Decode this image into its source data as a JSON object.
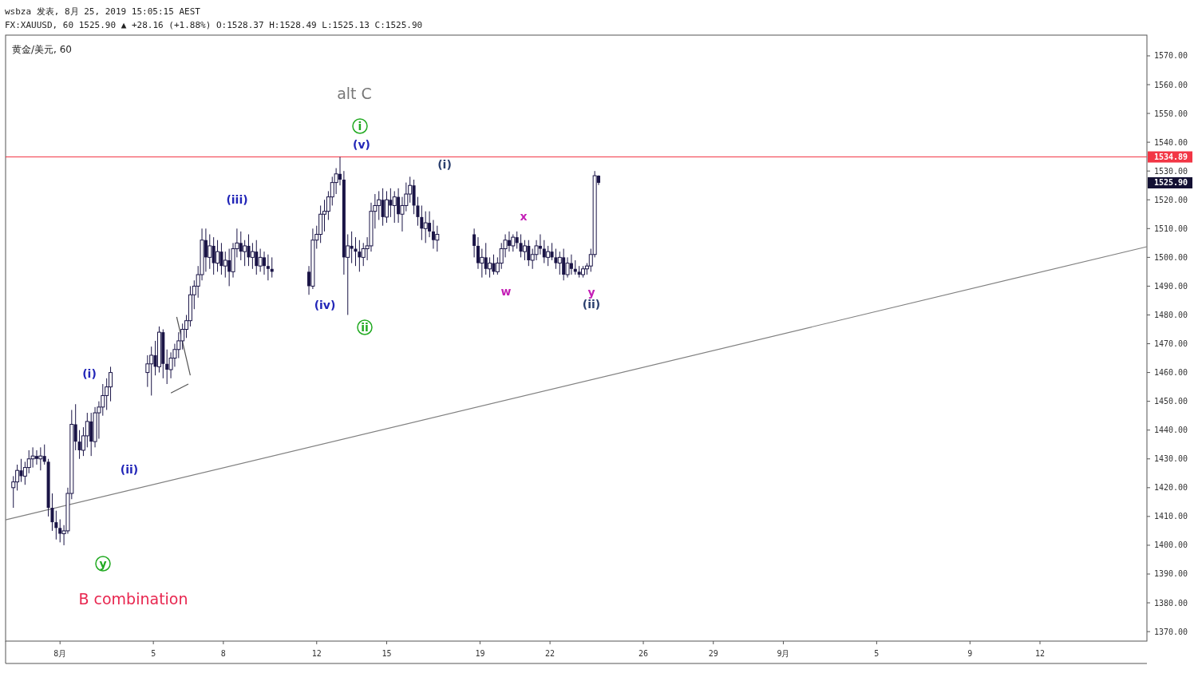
{
  "chart_data": {
    "type": "candlestick",
    "title": "黄金/美元, 60",
    "subtitle": "FX:XAUUSD, 60 1525.90 ▲ +28.16 (+1.88%) O:1528.37 H:1528.49 L:1525.13 C:1525.90",
    "color": "#1a1446",
    "x": [
      "2019-07-30T00:00",
      "2019-07-30T04:00",
      "2019-07-30T08:00",
      "2019-07-30T12:00",
      "2019-07-30T16:00",
      "2019-07-30T20:00",
      "2019-07-31T00:00",
      "2019-07-31T04:00",
      "2019-07-31T08:00",
      "2019-07-31T12:00",
      "2019-07-31T16:00",
      "2019-07-31T20:00",
      "2019-08-01T00:00",
      "2019-08-01T04:00",
      "2019-08-01T08:00",
      "2019-08-01T12:00",
      "2019-08-01T16:00",
      "2019-08-01T20:00",
      "2019-08-02T00:00",
      "2019-08-02T04:00",
      "2019-08-02T08:00",
      "2019-08-02T12:00",
      "2019-08-02T16:00",
      "2019-08-02T20:00",
      "2019-08-03T00:00",
      "2019-08-03T04:00",
      "2019-08-04T18:00",
      "2019-08-04T22:00",
      "2019-08-05T02:00",
      "2019-08-05T06:00",
      "2019-08-05T10:00",
      "2019-08-05T14:00",
      "2019-08-05T18:00",
      "2019-08-05T22:00",
      "2019-08-06T02:00",
      "2019-08-06T06:00",
      "2019-08-06T10:00",
      "2019-08-06T14:00",
      "2019-08-06T18:00",
      "2019-08-06T22:00",
      "2019-08-07T02:00",
      "2019-08-07T06:00",
      "2019-08-07T10:00",
      "2019-08-07T14:00",
      "2019-08-07T18:00",
      "2019-08-07T22:00",
      "2019-08-08T02:00",
      "2019-08-08T06:00",
      "2019-08-08T10:00",
      "2019-08-08T14:00",
      "2019-08-08T18:00",
      "2019-08-08T22:00",
      "2019-08-09T02:00",
      "2019-08-09T06:00",
      "2019-08-09T10:00",
      "2019-08-09T14:00",
      "2019-08-09T18:00",
      "2019-08-09T22:00",
      "2019-08-10T02:00",
      "2019-08-11T16:00",
      "2019-08-11T20:00",
      "2019-08-12T00:00",
      "2019-08-12T04:00",
      "2019-08-12T08:00",
      "2019-08-12T12:00",
      "2019-08-12T16:00",
      "2019-08-12T20:00",
      "2019-08-13T00:00",
      "2019-08-13T04:00",
      "2019-08-13T08:00",
      "2019-08-13T12:00",
      "2019-08-13T16:00",
      "2019-08-13T20:00",
      "2019-08-14T00:00",
      "2019-08-14T04:00",
      "2019-08-14T08:00",
      "2019-08-14T12:00",
      "2019-08-14T16:00",
      "2019-08-14T20:00",
      "2019-08-15T00:00",
      "2019-08-15T04:00",
      "2019-08-15T08:00",
      "2019-08-15T12:00",
      "2019-08-15T16:00",
      "2019-08-15T20:00",
      "2019-08-16T00:00",
      "2019-08-16T04:00",
      "2019-08-16T08:00",
      "2019-08-16T12:00",
      "2019-08-16T16:00",
      "2019-08-16T20:00",
      "2019-08-17T00:00",
      "2019-08-17T04:00",
      "2019-08-18T18:00",
      "2019-08-18T22:00",
      "2019-08-19T02:00",
      "2019-08-19T06:00",
      "2019-08-19T10:00",
      "2019-08-19T14:00",
      "2019-08-19T18:00",
      "2019-08-19T22:00",
      "2019-08-20T02:00",
      "2019-08-20T06:00",
      "2019-08-20T10:00",
      "2019-08-20T14:00",
      "2019-08-20T18:00",
      "2019-08-20T22:00",
      "2019-08-21T02:00",
      "2019-08-21T06:00",
      "2019-08-21T10:00",
      "2019-08-21T14:00",
      "2019-08-21T18:00",
      "2019-08-21T22:00",
      "2019-08-22T02:00",
      "2019-08-22T06:00",
      "2019-08-22T10:00",
      "2019-08-22T14:00",
      "2019-08-22T18:00",
      "2019-08-22T22:00",
      "2019-08-23T02:00",
      "2019-08-23T06:00",
      "2019-08-23T10:00",
      "2019-08-23T14:00",
      "2019-08-23T18:00",
      "2019-08-23T22:00",
      "2019-08-24T02:00"
    ],
    "ohlc": [
      [
        1420,
        1424,
        1413,
        1422
      ],
      [
        1422,
        1428,
        1419,
        1426
      ],
      [
        1426,
        1430,
        1422,
        1424
      ],
      [
        1424,
        1429,
        1421,
        1427
      ],
      [
        1427,
        1433,
        1425,
        1430
      ],
      [
        1430,
        1434,
        1427,
        1431
      ],
      [
        1431,
        1433,
        1428,
        1430
      ],
      [
        1430,
        1434,
        1426,
        1431
      ],
      [
        1431,
        1435,
        1428,
        1429
      ],
      [
        1429,
        1430,
        1410,
        1413
      ],
      [
        1413,
        1418,
        1405,
        1408
      ],
      [
        1408,
        1412,
        1402,
        1406
      ],
      [
        1406,
        1409,
        1401,
        1404
      ],
      [
        1404,
        1407,
        1400,
        1405
      ],
      [
        1405,
        1420,
        1404,
        1418
      ],
      [
        1418,
        1447,
        1416,
        1442
      ],
      [
        1442,
        1449,
        1433,
        1436
      ],
      [
        1436,
        1440,
        1430,
        1433
      ],
      [
        1433,
        1441,
        1431,
        1438
      ],
      [
        1438,
        1446,
        1434,
        1443
      ],
      [
        1443,
        1446,
        1431,
        1436
      ],
      [
        1436,
        1448,
        1434,
        1446
      ],
      [
        1446,
        1450,
        1437,
        1448
      ],
      [
        1448,
        1456,
        1445,
        1452
      ],
      [
        1452,
        1458,
        1447,
        1455
      ],
      [
        1455,
        1462,
        1450,
        1460
      ],
      [
        1460,
        1466,
        1455,
        1463
      ],
      [
        1463,
        1469,
        1452,
        1466
      ],
      [
        1466,
        1471,
        1459,
        1462
      ],
      [
        1462,
        1476,
        1460,
        1474
      ],
      [
        1474,
        1475,
        1458,
        1463
      ],
      [
        1463,
        1468,
        1456,
        1461
      ],
      [
        1461,
        1467,
        1458,
        1465
      ],
      [
        1465,
        1470,
        1462,
        1468
      ],
      [
        1468,
        1474,
        1465,
        1471
      ],
      [
        1471,
        1477,
        1468,
        1475
      ],
      [
        1475,
        1480,
        1472,
        1478
      ],
      [
        1478,
        1490,
        1476,
        1487
      ],
      [
        1487,
        1492,
        1482,
        1490
      ],
      [
        1490,
        1497,
        1486,
        1494
      ],
      [
        1494,
        1510,
        1492,
        1506
      ],
      [
        1506,
        1510,
        1495,
        1500
      ],
      [
        1500,
        1508,
        1496,
        1504
      ],
      [
        1504,
        1507,
        1494,
        1498
      ],
      [
        1498,
        1506,
        1495,
        1502
      ],
      [
        1502,
        1505,
        1494,
        1497
      ],
      [
        1497,
        1502,
        1493,
        1499
      ],
      [
        1499,
        1503,
        1490,
        1495
      ],
      [
        1495,
        1505,
        1493,
        1503
      ],
      [
        1503,
        1510,
        1500,
        1505
      ],
      [
        1505,
        1509,
        1499,
        1502
      ],
      [
        1502,
        1506,
        1497,
        1504
      ],
      [
        1504,
        1508,
        1497,
        1500
      ],
      [
        1500,
        1505,
        1496,
        1502
      ],
      [
        1502,
        1506,
        1494,
        1497
      ],
      [
        1497,
        1503,
        1495,
        1500
      ],
      [
        1500,
        1502,
        1494,
        1497
      ],
      [
        1497,
        1501,
        1492,
        1496
      ],
      [
        1496,
        1500,
        1493,
        1495
      ],
      [
        1495,
        1497,
        1487,
        1490
      ],
      [
        1490,
        1510,
        1489,
        1506
      ],
      [
        1506,
        1511,
        1503,
        1508
      ],
      [
        1508,
        1518,
        1505,
        1515
      ],
      [
        1515,
        1520,
        1509,
        1516
      ],
      [
        1516,
        1523,
        1513,
        1521
      ],
      [
        1521,
        1528,
        1518,
        1526
      ],
      [
        1526,
        1531,
        1522,
        1529
      ],
      [
        1529,
        1534.89,
        1525,
        1527
      ],
      [
        1527,
        1530,
        1494,
        1500
      ],
      [
        1500,
        1508,
        1480,
        1504
      ],
      [
        1504,
        1509,
        1498,
        1503
      ],
      [
        1503,
        1507,
        1497,
        1502
      ],
      [
        1502,
        1506,
        1495,
        1500
      ],
      [
        1500,
        1505,
        1497,
        1503
      ],
      [
        1503,
        1507,
        1499,
        1504
      ],
      [
        1504,
        1519,
        1502,
        1516
      ],
      [
        1516,
        1522,
        1510,
        1518
      ],
      [
        1518,
        1523,
        1513,
        1520
      ],
      [
        1520,
        1524,
        1511,
        1514
      ],
      [
        1514,
        1523,
        1512,
        1520
      ],
      [
        1520,
        1524,
        1514,
        1518
      ],
      [
        1518,
        1523,
        1512,
        1521
      ],
      [
        1521,
        1524,
        1512,
        1515
      ],
      [
        1515,
        1521,
        1509,
        1518
      ],
      [
        1518,
        1526,
        1516,
        1522
      ],
      [
        1522,
        1528,
        1519,
        1525
      ],
      [
        1525,
        1527,
        1515,
        1518
      ],
      [
        1518,
        1521,
        1511,
        1514
      ],
      [
        1514,
        1518,
        1506,
        1510
      ],
      [
        1510,
        1516,
        1505,
        1512
      ],
      [
        1512,
        1516,
        1507,
        1509
      ],
      [
        1509,
        1513,
        1503,
        1506
      ],
      [
        1506,
        1511,
        1502,
        1508
      ],
      [
        1508,
        1510,
        1500,
        1504
      ],
      [
        1504,
        1507,
        1496,
        1498
      ],
      [
        1498,
        1503,
        1493,
        1500
      ],
      [
        1500,
        1505,
        1494,
        1496
      ],
      [
        1496,
        1500,
        1493,
        1498
      ],
      [
        1498,
        1501,
        1494,
        1495
      ],
      [
        1495,
        1500,
        1494,
        1498
      ],
      [
        1498,
        1505,
        1496,
        1503
      ],
      [
        1503,
        1508,
        1500,
        1506
      ],
      [
        1506,
        1509,
        1502,
        1504
      ],
      [
        1504,
        1508,
        1502,
        1507
      ],
      [
        1507,
        1509,
        1503,
        1505
      ],
      [
        1505,
        1508,
        1500,
        1502
      ],
      [
        1502,
        1506,
        1499,
        1504
      ],
      [
        1504,
        1506,
        1497,
        1499
      ],
      [
        1499,
        1503,
        1496,
        1501
      ],
      [
        1501,
        1506,
        1499,
        1504
      ],
      [
        1504,
        1508,
        1501,
        1503
      ],
      [
        1503,
        1506,
        1498,
        1500
      ],
      [
        1500,
        1504,
        1497,
        1502
      ],
      [
        1502,
        1505,
        1499,
        1500
      ],
      [
        1500,
        1503,
        1496,
        1498
      ],
      [
        1498,
        1502,
        1494,
        1500
      ],
      [
        1500,
        1503,
        1492,
        1494
      ],
      [
        1494,
        1500,
        1493,
        1498
      ],
      [
        1498,
        1501,
        1494,
        1496
      ],
      [
        1496,
        1499,
        1494,
        1495
      ],
      [
        1495,
        1497,
        1493,
        1494
      ],
      [
        1494,
        1497,
        1493,
        1496
      ],
      [
        1496,
        1498,
        1494,
        1497
      ],
      [
        1497,
        1503,
        1495,
        1501
      ],
      [
        1501,
        1530,
        1500,
        1528.37
      ],
      [
        1528.37,
        1528.49,
        1525.13,
        1525.9
      ]
    ],
    "series": [
      {
        "type": "line",
        "color": "#808080",
        "x": [
          "2019-07-29T16:00",
          "2019-09-16T14:00"
        ],
        "values": [
          1408.8,
          1503.7
        ]
      },
      {
        "type": "line",
        "color": "#555555",
        "x": [
          "2019-08-06T00:00",
          "2019-08-06T14:00",
          null,
          "2019-08-05T18:00",
          "2019-08-06T12:00"
        ],
        "values": [
          1479.3,
          1459.0,
          null,
          1452.9,
          1456.0
        ]
      }
    ],
    "xlim": [
      "2019-07-29T16:00",
      "2019-09-16T14:00"
    ],
    "xticks": [
      {
        "value": "2019-08-01",
        "label": "8月"
      },
      {
        "value": "2019-08-05",
        "label": "5"
      },
      {
        "value": "2019-08-08",
        "label": "8"
      },
      {
        "value": "2019-08-12",
        "label": "12"
      },
      {
        "value": "2019-08-15",
        "label": "15"
      },
      {
        "value": "2019-08-19",
        "label": "19"
      },
      {
        "value": "2019-08-22",
        "label": "22"
      },
      {
        "value": "2019-08-26",
        "label": "26"
      },
      {
        "value": "2019-08-29",
        "label": "29"
      },
      {
        "value": "2019-09-01",
        "label": "9月"
      },
      {
        "value": "2019-09-05",
        "label": "5"
      },
      {
        "value": "2019-09-09",
        "label": "9"
      },
      {
        "value": "2019-09-12",
        "label": "12"
      }
    ],
    "ylim": [
      1366.7,
      1577.2
    ],
    "yticks": [
      {
        "value": 1370,
        "label": "1370.00"
      },
      {
        "value": 1380,
        "label": "1380.00"
      },
      {
        "value": 1390,
        "label": "1390.00"
      },
      {
        "value": 1400,
        "label": "1400.00"
      },
      {
        "value": 1410,
        "label": "1410.00"
      },
      {
        "value": 1420,
        "label": "1420.00"
      },
      {
        "value": 1430,
        "label": "1430.00"
      },
      {
        "value": 1440,
        "label": "1440.00"
      },
      {
        "value": 1450,
        "label": "1450.00"
      },
      {
        "value": 1460,
        "label": "1460.00"
      },
      {
        "value": 1470,
        "label": "1470.00"
      },
      {
        "value": 1480,
        "label": "1480.00"
      },
      {
        "value": 1490,
        "label": "1490.00"
      },
      {
        "value": 1500,
        "label": "1500.00"
      },
      {
        "value": 1510,
        "label": "1510.00"
      },
      {
        "value": 1520,
        "label": "1520.00"
      },
      {
        "value": 1530,
        "label": "1530.00"
      },
      {
        "value": 1540,
        "label": "1540.00"
      },
      {
        "value": 1550,
        "label": "1550.00"
      },
      {
        "value": 1560,
        "label": "1560.00"
      },
      {
        "value": 1570,
        "label": "1570.00"
      }
    ],
    "ref_lines": [
      {
        "axis": "y",
        "value": 1534.89,
        "label": "1534.89",
        "color": "#f23645"
      }
    ],
    "annotations": [
      "wsbza 发表, 8月 25, 2019 15:05:15 AEST",
      "1525.90",
      "(i)",
      "(ii)",
      "(iii)",
      "(iv)",
      "(v)",
      "i",
      "ii",
      "y",
      "(i)",
      "(ii)",
      "w",
      "x",
      "y",
      "alt C",
      "B combination"
    ]
  }
}
